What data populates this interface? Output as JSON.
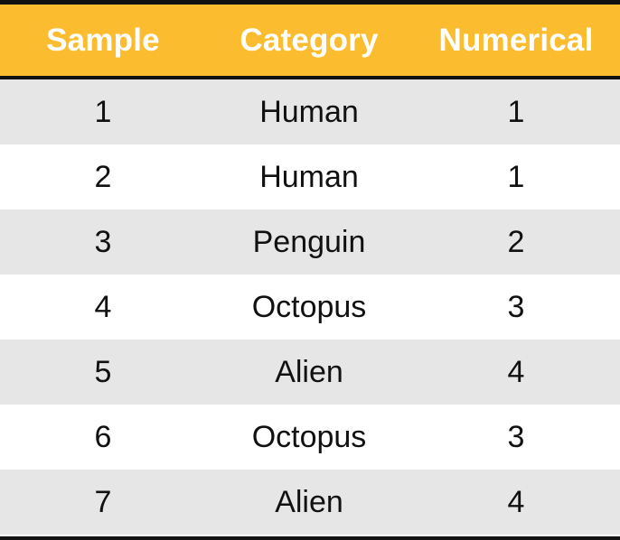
{
  "table": {
    "columns": [
      "Sample",
      "Category",
      "Numerical"
    ],
    "rows": [
      [
        "1",
        "Human",
        "1"
      ],
      [
        "2",
        "Human",
        "1"
      ],
      [
        "3",
        "Penguin",
        "2"
      ],
      [
        "4",
        "Octopus",
        "3"
      ],
      [
        "5",
        "Alien",
        "4"
      ],
      [
        "6",
        "Octopus",
        "3"
      ],
      [
        "7",
        "Alien",
        "4"
      ]
    ]
  },
  "colors": {
    "header_background": "#FBBD2F",
    "header_text": "#FFFFFF",
    "striped_row": "#E6E6E6",
    "plain_row": "#FFFFFF",
    "border": "#111111"
  }
}
